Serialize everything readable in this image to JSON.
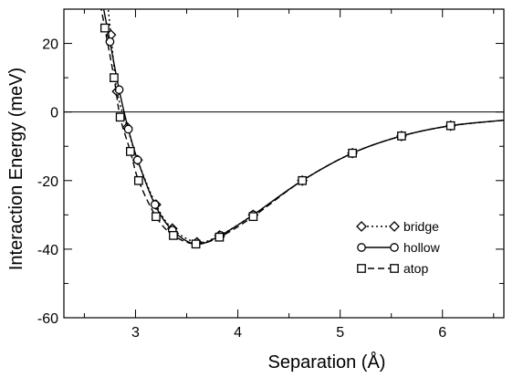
{
  "chart_data": {
    "type": "line",
    "title": "",
    "xlabel": "Separation (Å)",
    "ylabel": "Interaction Energy (meV)",
    "xlim": [
      2.3,
      6.6
    ],
    "ylim": [
      -60,
      30
    ],
    "xticks": [
      3,
      4,
      5,
      6
    ],
    "yticks": [
      20,
      0,
      -20,
      -40,
      -60
    ],
    "xtick_labels": [
      "3",
      "4",
      "5",
      "6"
    ],
    "ytick_labels": [
      "20",
      "0",
      "-20",
      "-40",
      "-60"
    ],
    "grid": false,
    "zero_line": true,
    "legend_position": "center-right",
    "series": [
      {
        "name": "bridge",
        "marker": "diamond",
        "line_style": "dotted",
        "points": [
          [
            2.76,
            22.5
          ],
          [
            2.82,
            6.0
          ],
          [
            2.92,
            -4.5
          ],
          [
            3.02,
            -14.0
          ],
          [
            3.2,
            -27.0
          ],
          [
            3.36,
            -34.0
          ],
          [
            3.6,
            -38.0
          ],
          [
            3.82,
            -36.0
          ],
          [
            4.15,
            -30.0
          ],
          [
            4.63,
            -20.0
          ],
          [
            5.12,
            -12.0
          ],
          [
            5.6,
            -7.0
          ],
          [
            6.08,
            -4.0
          ]
        ]
      },
      {
        "name": "hollow",
        "marker": "circle",
        "line_style": "solid",
        "points": [
          [
            2.75,
            20.5
          ],
          [
            2.84,
            6.5
          ],
          [
            2.93,
            -5.0
          ],
          [
            3.02,
            -14.0
          ],
          [
            3.19,
            -27.0
          ],
          [
            3.36,
            -34.5
          ],
          [
            3.59,
            -38.5
          ],
          [
            3.83,
            -36.0
          ],
          [
            4.15,
            -30.0
          ],
          [
            4.63,
            -20.0
          ],
          [
            5.12,
            -12.0
          ],
          [
            5.6,
            -7.0
          ],
          [
            6.08,
            -4.0
          ]
        ]
      },
      {
        "name": "atop",
        "marker": "square",
        "line_style": "dashed",
        "points": [
          [
            2.7,
            24.5
          ],
          [
            2.79,
            10.0
          ],
          [
            2.85,
            -1.5
          ],
          [
            2.95,
            -11.5
          ],
          [
            3.03,
            -20.0
          ],
          [
            3.2,
            -30.5
          ],
          [
            3.37,
            -36.0
          ],
          [
            3.59,
            -38.5
          ],
          [
            3.82,
            -36.5
          ],
          [
            4.15,
            -30.5
          ],
          [
            4.63,
            -20.0
          ],
          [
            5.12,
            -12.0
          ],
          [
            5.6,
            -7.0
          ],
          [
            6.08,
            -4.0
          ]
        ]
      }
    ]
  }
}
